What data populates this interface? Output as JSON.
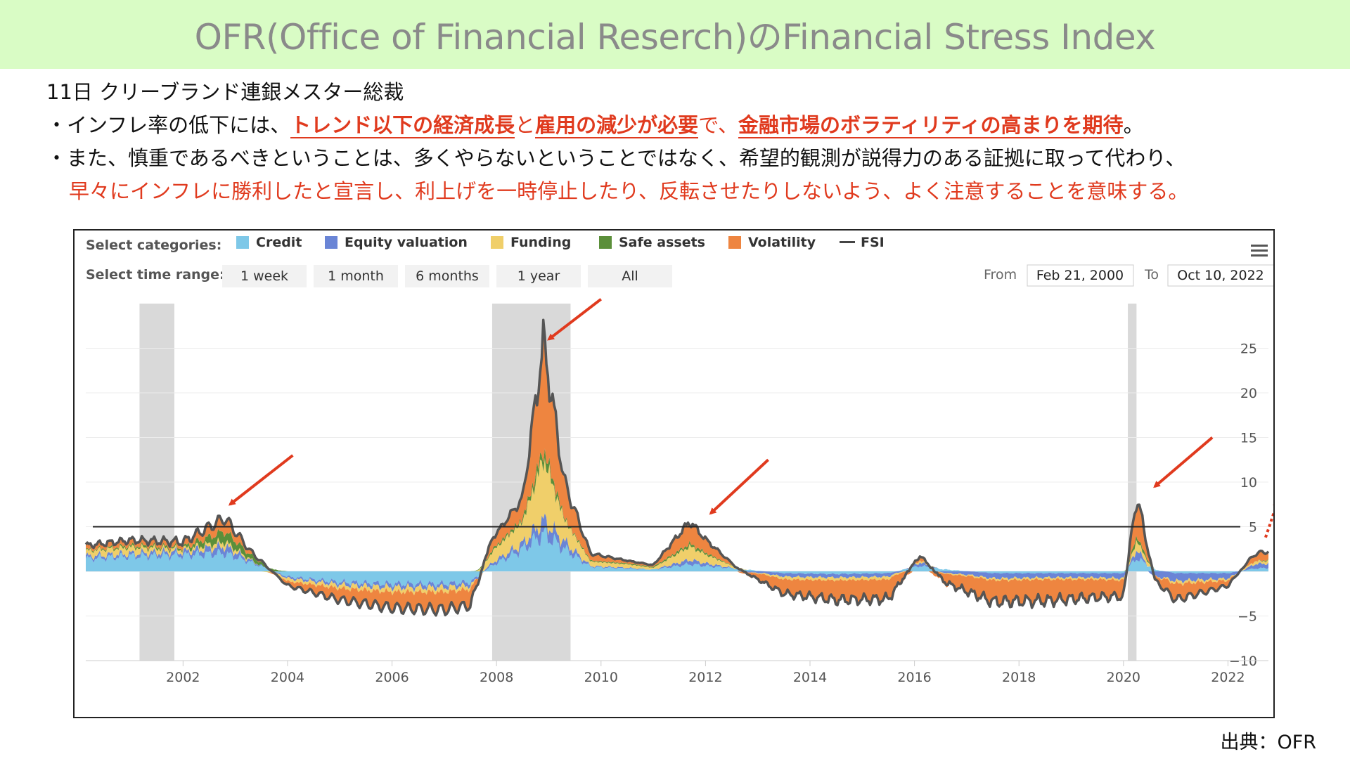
{
  "title": "OFR(Office of Financial Reserch)のFinancial Stress Index",
  "notes": {
    "header": "11日 クリーブランド連銀メスター総裁",
    "bullet1_pre": "・インフレ率の低下には、",
    "bullet1_hl1": "トレンド以下の経済成長",
    "bullet1_mid1": "と",
    "bullet1_hl2": "雇用の減少が必要",
    "bullet1_mid2": "で、",
    "bullet1_hl3": "金融市場のボラティリティの高まりを期待",
    "bullet1_post": "。",
    "bullet2_line1": "・また、慎重であるべきということは、多くやらないということではなく、希望的観測が説得力のある証拠に取って代わり、",
    "bullet2_line2": "早々にインフレに勝利したと宣言し、利上げを一時停止したり、反転させたりしないよう、よく注意することを意味する。"
  },
  "source": "出典：OFR",
  "controls": {
    "categories_label": "Select categories:",
    "range_label": "Select time range:",
    "range_buttons": [
      "1 week",
      "1 month",
      "6 months",
      "1 year",
      "All"
    ],
    "from_label": "From",
    "from_value": "Feb 21, 2000",
    "to_label": "To",
    "to_value": "Oct 10, 2022",
    "menu_icon": "hamburger-menu-icon"
  },
  "chart_data": {
    "type": "area",
    "stacked": true,
    "x_range": [
      "2000-02-21",
      "2022-10-10"
    ],
    "ylim": [
      -10,
      30
    ],
    "y_ticks": [
      25,
      20,
      15,
      10,
      5,
      -5,
      -10
    ],
    "x_ticks": [
      "2002",
      "2004",
      "2006",
      "2008",
      "2010",
      "2012",
      "2014",
      "2016",
      "2018",
      "2020",
      "2022"
    ],
    "reference_line": 5,
    "recession_bands": [
      [
        "2001-03",
        "2001-11"
      ],
      [
        "2007-12",
        "2009-06"
      ],
      [
        "2020-02",
        "2020-04"
      ]
    ],
    "series": [
      {
        "name": "Credit",
        "color": "#7ec8e8",
        "values": [
          [
            2000.15,
            1.4
          ],
          [
            2001.0,
            1.7
          ],
          [
            2002.0,
            1.8
          ],
          [
            2002.8,
            2.0
          ],
          [
            2003.3,
            1.0
          ],
          [
            2004.0,
            -0.6
          ],
          [
            2005.0,
            -1.2
          ],
          [
            2006.0,
            -1.4
          ],
          [
            2007.0,
            -1.4
          ],
          [
            2007.5,
            -1.2
          ],
          [
            2007.9,
            0.6
          ],
          [
            2008.5,
            2.5
          ],
          [
            2008.9,
            4.2
          ],
          [
            2009.3,
            2.5
          ],
          [
            2009.8,
            0.5
          ],
          [
            2010.5,
            0.3
          ],
          [
            2011.0,
            0.2
          ],
          [
            2011.7,
            0.8
          ],
          [
            2012.0,
            0.6
          ],
          [
            2012.6,
            0.3
          ],
          [
            2013.5,
            -0.2
          ],
          [
            2014.5,
            -0.3
          ],
          [
            2015.5,
            -0.2
          ],
          [
            2016.1,
            0.6
          ],
          [
            2016.6,
            0.2
          ],
          [
            2017.5,
            -0.2
          ],
          [
            2018.5,
            -0.2
          ],
          [
            2019.5,
            -0.2
          ],
          [
            2020.0,
            -0.2
          ],
          [
            2020.25,
            1.5
          ],
          [
            2020.6,
            0.2
          ],
          [
            2021.0,
            -0.2
          ],
          [
            2022.0,
            -0.2
          ],
          [
            2022.5,
            0.3
          ],
          [
            2022.78,
            0.4
          ]
        ]
      },
      {
        "name": "Equity valuation",
        "color": "#6a85d6",
        "values": [
          [
            2000.15,
            0.3
          ],
          [
            2001.0,
            0.3
          ],
          [
            2002.0,
            0.4
          ],
          [
            2002.8,
            0.8
          ],
          [
            2003.3,
            0.2
          ],
          [
            2004.0,
            -0.2
          ],
          [
            2005.0,
            -0.3
          ],
          [
            2006.0,
            -0.4
          ],
          [
            2007.0,
            -0.4
          ],
          [
            2007.5,
            -0.4
          ],
          [
            2007.9,
            0.3
          ],
          [
            2008.5,
            0.6
          ],
          [
            2008.9,
            1.5
          ],
          [
            2009.3,
            0.8
          ],
          [
            2009.8,
            0.1
          ],
          [
            2010.5,
            0.1
          ],
          [
            2011.0,
            0.0
          ],
          [
            2011.7,
            0.5
          ],
          [
            2012.0,
            0.3
          ],
          [
            2012.6,
            0.0
          ],
          [
            2013.5,
            -0.4
          ],
          [
            2014.5,
            -0.4
          ],
          [
            2015.5,
            -0.4
          ],
          [
            2016.1,
            0.4
          ],
          [
            2016.6,
            -0.2
          ],
          [
            2017.5,
            -0.6
          ],
          [
            2018.5,
            -0.5
          ],
          [
            2019.5,
            -0.5
          ],
          [
            2020.0,
            -0.6
          ],
          [
            2020.25,
            1.0
          ],
          [
            2020.6,
            -0.6
          ],
          [
            2021.0,
            -0.9
          ],
          [
            2022.0,
            -0.6
          ],
          [
            2022.5,
            0.5
          ],
          [
            2022.78,
            0.5
          ]
        ]
      },
      {
        "name": "Funding",
        "color": "#f0cf6a",
        "values": [
          [
            2000.15,
            0.6
          ],
          [
            2001.0,
            0.7
          ],
          [
            2002.0,
            0.3
          ],
          [
            2002.8,
            0.5
          ],
          [
            2003.3,
            0.1
          ],
          [
            2004.0,
            -0.3
          ],
          [
            2005.0,
            -0.4
          ],
          [
            2006.0,
            -0.5
          ],
          [
            2007.0,
            -0.5
          ],
          [
            2007.5,
            -0.4
          ],
          [
            2007.9,
            1.2
          ],
          [
            2008.5,
            2.5
          ],
          [
            2008.9,
            7.0
          ],
          [
            2009.3,
            2.5
          ],
          [
            2009.8,
            0.5
          ],
          [
            2010.5,
            0.4
          ],
          [
            2011.0,
            0.2
          ],
          [
            2011.7,
            1.5
          ],
          [
            2012.0,
            1.0
          ],
          [
            2012.6,
            0.1
          ],
          [
            2013.5,
            -0.3
          ],
          [
            2014.5,
            -0.3
          ],
          [
            2015.5,
            -0.3
          ],
          [
            2016.1,
            0.2
          ],
          [
            2016.6,
            -0.1
          ],
          [
            2017.5,
            -0.2
          ],
          [
            2018.5,
            -0.2
          ],
          [
            2019.5,
            -0.2
          ],
          [
            2020.0,
            -0.2
          ],
          [
            2020.25,
            1.0
          ],
          [
            2020.6,
            0.0
          ],
          [
            2021.0,
            -0.3
          ],
          [
            2022.0,
            -0.2
          ],
          [
            2022.5,
            0.3
          ],
          [
            2022.78,
            0.3
          ]
        ]
      },
      {
        "name": "Safe assets",
        "color": "#5b8f3a",
        "values": [
          [
            2000.15,
            0.1
          ],
          [
            2001.0,
            0.2
          ],
          [
            2002.0,
            0.2
          ],
          [
            2002.8,
            1.2
          ],
          [
            2003.3,
            0.5
          ],
          [
            2004.0,
            0.0
          ],
          [
            2005.0,
            0.0
          ],
          [
            2006.0,
            0.0
          ],
          [
            2007.0,
            0.0
          ],
          [
            2007.5,
            0.0
          ],
          [
            2007.9,
            0.2
          ],
          [
            2008.5,
            0.3
          ],
          [
            2008.9,
            1.0
          ],
          [
            2009.3,
            0.2
          ],
          [
            2009.8,
            0.1
          ],
          [
            2010.5,
            0.1
          ],
          [
            2011.0,
            0.1
          ],
          [
            2011.7,
            0.3
          ],
          [
            2012.0,
            0.2
          ],
          [
            2012.6,
            0.0
          ],
          [
            2013.5,
            0.0
          ],
          [
            2014.5,
            0.0
          ],
          [
            2015.5,
            0.0
          ],
          [
            2016.1,
            0.0
          ],
          [
            2016.6,
            0.0
          ],
          [
            2017.5,
            0.0
          ],
          [
            2018.5,
            0.0
          ],
          [
            2019.5,
            0.0
          ],
          [
            2020.0,
            0.0
          ],
          [
            2020.25,
            0.5
          ],
          [
            2020.6,
            0.0
          ],
          [
            2021.0,
            0.0
          ],
          [
            2022.0,
            0.0
          ],
          [
            2022.5,
            0.0
          ],
          [
            2022.78,
            0.1
          ]
        ]
      },
      {
        "name": "Volatility",
        "color": "#ee8540",
        "values": [
          [
            2000.15,
            0.5
          ],
          [
            2001.0,
            0.6
          ],
          [
            2002.0,
            0.6
          ],
          [
            2002.8,
            1.5
          ],
          [
            2003.3,
            0.4
          ],
          [
            2004.0,
            -0.5
          ],
          [
            2005.0,
            -1.3
          ],
          [
            2006.0,
            -1.8
          ],
          [
            2007.0,
            -2.0
          ],
          [
            2007.5,
            -1.8
          ],
          [
            2007.9,
            1.2
          ],
          [
            2008.5,
            2.3
          ],
          [
            2008.9,
            12.0
          ],
          [
            2009.3,
            4.0
          ],
          [
            2009.8,
            0.8
          ],
          [
            2010.5,
            0.3
          ],
          [
            2011.0,
            0.2
          ],
          [
            2011.7,
            2.5
          ],
          [
            2012.0,
            1.5
          ],
          [
            2012.6,
            0.0
          ],
          [
            2013.5,
            -1.6
          ],
          [
            2014.5,
            -2.2
          ],
          [
            2015.5,
            -2.2
          ],
          [
            2016.1,
            0.6
          ],
          [
            2016.6,
            -1.2
          ],
          [
            2017.5,
            -2.4
          ],
          [
            2018.5,
            -2.4
          ],
          [
            2019.5,
            -2.0
          ],
          [
            2020.0,
            -1.8
          ],
          [
            2020.25,
            4.5
          ],
          [
            2020.6,
            -0.6
          ],
          [
            2021.0,
            -1.8
          ],
          [
            2022.0,
            -0.6
          ],
          [
            2022.5,
            0.8
          ],
          [
            2022.78,
            1.0
          ]
        ]
      }
    ],
    "fsi_color": "#555555"
  }
}
